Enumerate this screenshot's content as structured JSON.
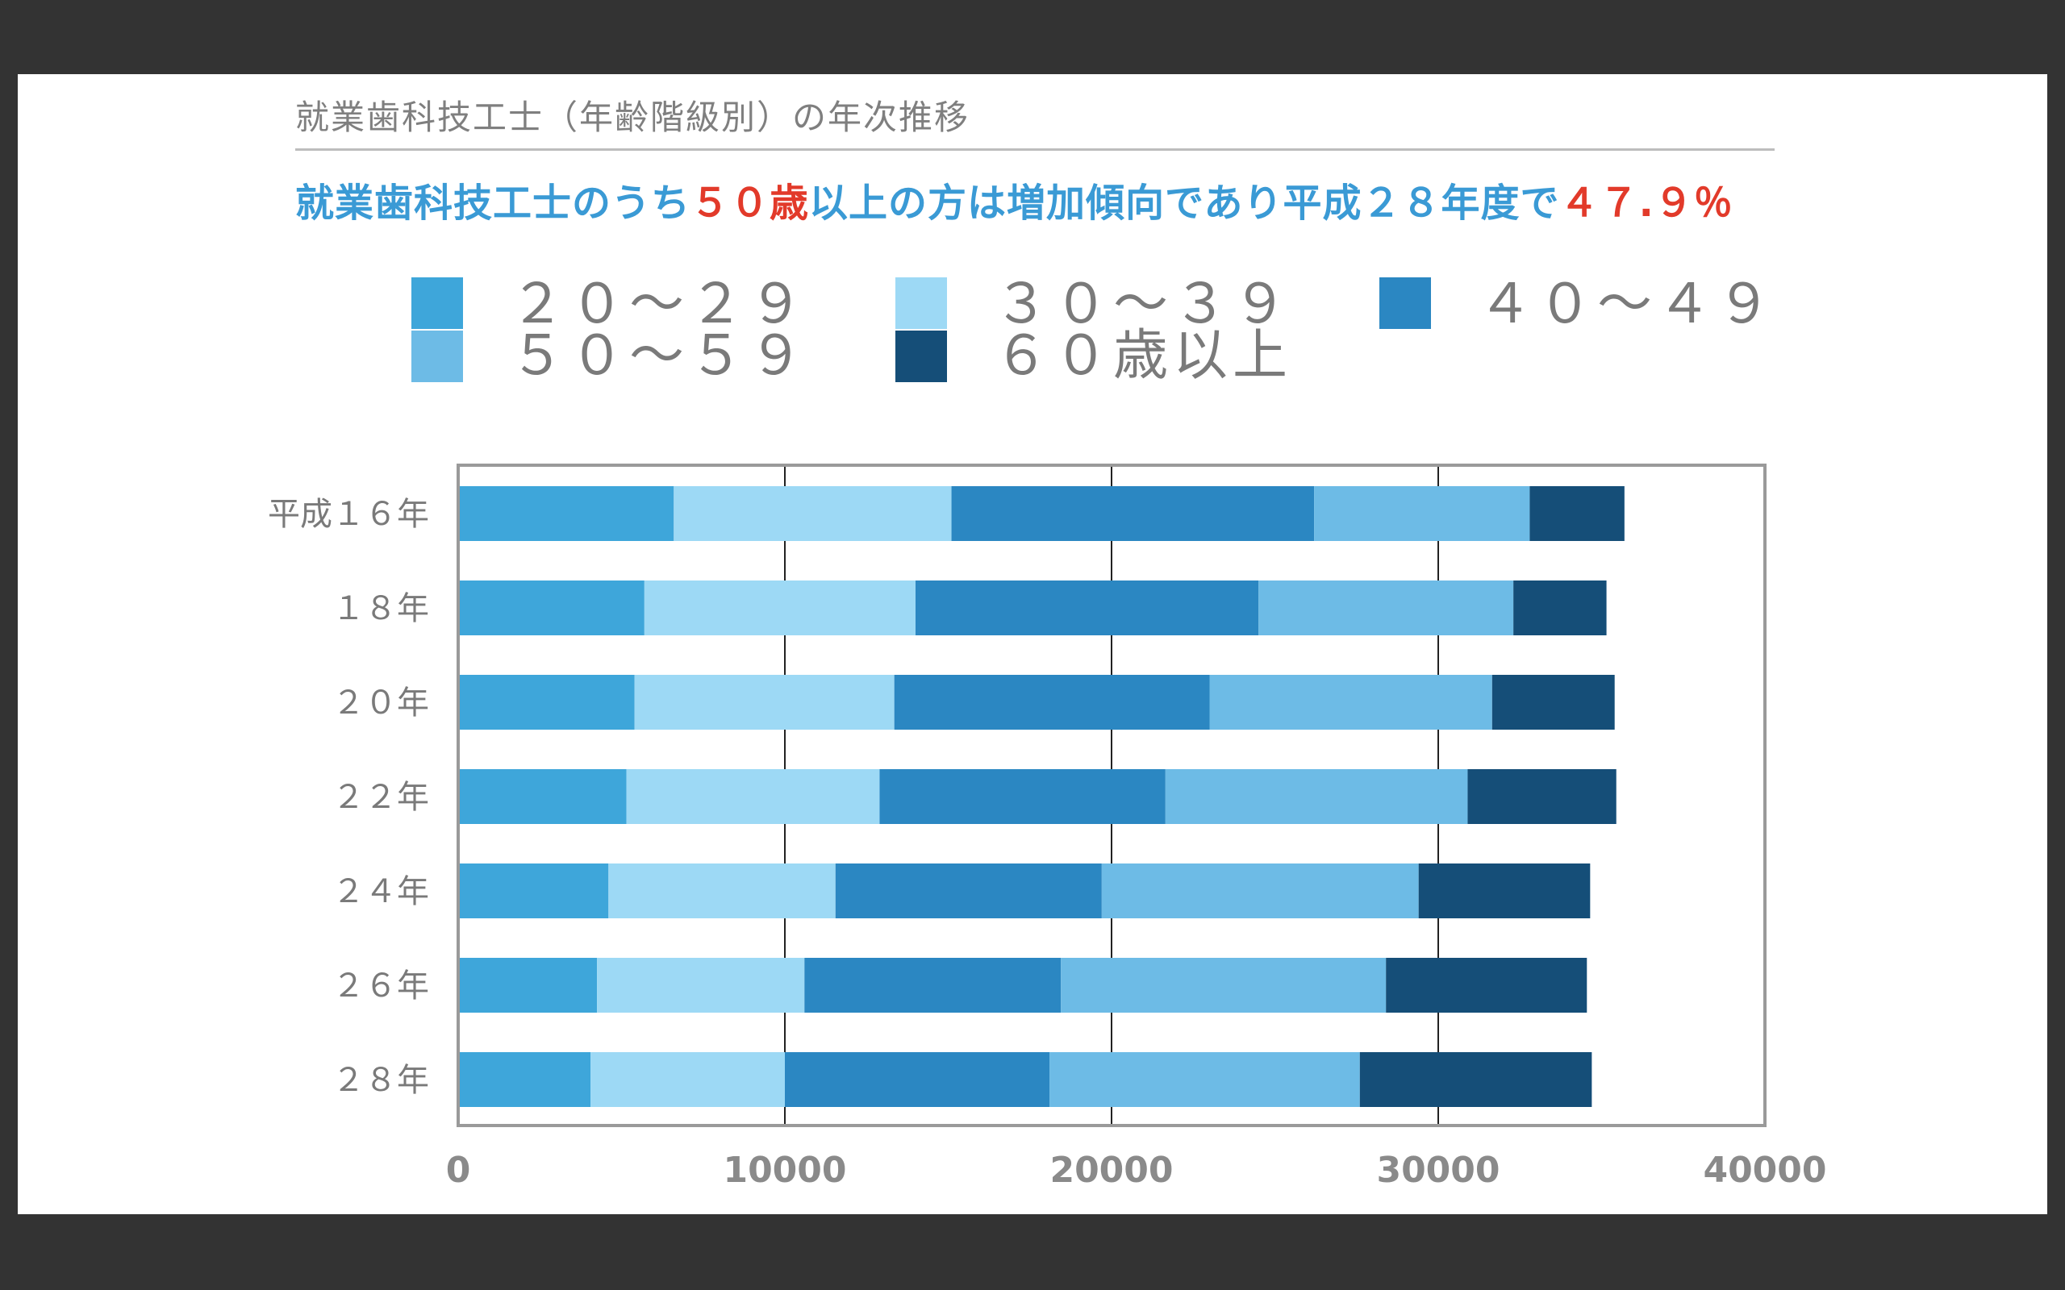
{
  "heading": "就業歯科技工士（年齢階級別）の年次推移",
  "subhead": {
    "part1": "就業歯科技工士のうち",
    "em1": "５０歳",
    "part2": "以上の方は増加傾向であり平成２８年度で",
    "em2": "４７.９％"
  },
  "colors": {
    "s20": "#3ea6da",
    "s30": "#9dd9f5",
    "s40": "#2b87c2",
    "s50": "#6dbbe6",
    "s60": "#154e78"
  },
  "chart_data": {
    "type": "bar",
    "orientation": "horizontal",
    "stacked": true,
    "categories": [
      "平成１６年",
      "１８年",
      "２０年",
      "２２年",
      "２４年",
      "２６年",
      "２８年"
    ],
    "series": [
      {
        "name": "２０～２９",
        "values": [
          6600,
          5700,
          5400,
          5150,
          4600,
          4250,
          4050
        ]
      },
      {
        "name": "３０～３９",
        "values": [
          8500,
          8300,
          7950,
          7750,
          6950,
          6350,
          5950
        ]
      },
      {
        "name": "４０～４９",
        "values": [
          11100,
          10500,
          9650,
          8750,
          8150,
          7850,
          8100
        ]
      },
      {
        "name": "５０～５９",
        "values": [
          6600,
          7800,
          8650,
          9250,
          9700,
          9950,
          9500
        ]
      },
      {
        "name": "６０歳以上",
        "values": [
          2900,
          2850,
          3750,
          4550,
          5250,
          6150,
          7100
        ]
      }
    ],
    "x_ticks": [
      "0",
      "10000",
      "20000",
      "30000",
      "40000"
    ],
    "xlim": [
      0,
      40000
    ],
    "grid": true,
    "legend_position": "top"
  }
}
